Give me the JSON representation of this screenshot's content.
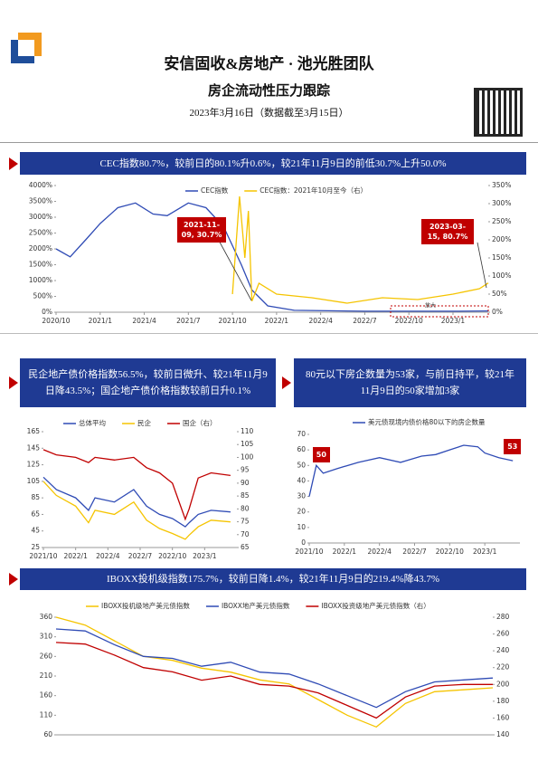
{
  "header": {
    "title": "安信固收&房地产 · 池光胜团队",
    "subtitle": "房企流动性压力跟踪",
    "date": "2023年3月16日（数据截至3月15日）"
  },
  "banners": [
    "CEC指数80.7%，较前日的80.1%升0.6%，较21年11月9日的前低30.7%上升50.0%",
    "民企地产债价格指数56.5%，较前日微升、较21年11月9日降43.5%；国企地产债价格指数较前日升0.1%",
    "80元以下房企数量为53家，与前日持平，较21年11月9日的50家增加3家",
    "IBOXX投机级指数175.7%，较前日降1.4%，较21年11月9日的219.4%降43.7%"
  ],
  "chart_data": [
    {
      "type": "line",
      "xlim": [
        2020.75,
        2023.2
      ],
      "xticks": [
        {
          "value": 2020.75,
          "label": "2020/10"
        },
        {
          "value": 2021.0,
          "label": "2021/1"
        },
        {
          "value": 2021.25,
          "label": "2021/4"
        },
        {
          "value": 2021.5,
          "label": "2021/7"
        },
        {
          "value": 2021.75,
          "label": "2021/10"
        },
        {
          "value": 2022.0,
          "label": "2022/1"
        },
        {
          "value": 2022.25,
          "label": "2022/4"
        },
        {
          "value": 2022.5,
          "label": "2022/7"
        },
        {
          "value": 2022.75,
          "label": "2022/10"
        },
        {
          "value": 2023.0,
          "label": "2023/1"
        }
      ],
      "ylim": [
        0,
        4000
      ],
      "yticks": [
        {
          "value": 0,
          "label": "0%"
        },
        {
          "value": 500,
          "label": "500%"
        },
        {
          "value": 1000,
          "label": "1000%"
        },
        {
          "value": 1500,
          "label": "1500%"
        },
        {
          "value": 2000,
          "label": "2000%"
        },
        {
          "value": 2500,
          "label": "2500%"
        },
        {
          "value": 3000,
          "label": "3000%"
        },
        {
          "value": 3500,
          "label": "3500%"
        },
        {
          "value": 4000,
          "label": "4000%"
        }
      ],
      "y2lim": [
        0,
        350
      ],
      "y2ticks": [
        {
          "value": 0,
          "label": "0%"
        },
        {
          "value": 50,
          "label": "50%"
        },
        {
          "value": 100,
          "label": "100%"
        },
        {
          "value": 150,
          "label": "150%"
        },
        {
          "value": 200,
          "label": "200%"
        },
        {
          "value": 250,
          "label": "250%"
        },
        {
          "value": 300,
          "label": "300%"
        },
        {
          "value": 350,
          "label": "350%"
        }
      ],
      "series": [
        {
          "name": "CEC指数",
          "color": "#2f4bb5",
          "x": [
            2020.75,
            2020.83,
            2020.92,
            2021.0,
            2021.1,
            2021.2,
            2021.3,
            2021.38,
            2021.5,
            2021.6,
            2021.7,
            2021.8,
            2021.86,
            2021.95,
            2022.1,
            2022.5,
            2023.0,
            2023.2
          ],
          "values": [
            2000,
            1750,
            2300,
            2800,
            3300,
            3450,
            3100,
            3050,
            3450,
            3300,
            2700,
            1500,
            700,
            200,
            60,
            30,
            30,
            40
          ]
        },
        {
          "name": "CEC指数：2021年10月至今（右）",
          "color": "#f5c400",
          "axis": "y2",
          "x": [
            2021.75,
            2021.79,
            2021.82,
            2021.84,
            2021.86,
            2021.9,
            2022.0,
            2022.2,
            2022.4,
            2022.6,
            2022.8,
            2023.0,
            2023.15,
            2023.2
          ],
          "values": [
            50,
            320,
            150,
            280,
            30.7,
            80,
            50,
            40,
            25,
            40,
            35,
            50,
            65,
            80.7
          ]
        }
      ],
      "annotations": [
        "2021-11-09, 30.7%",
        "2023-03-15, 80.7%",
        "放大"
      ]
    },
    {
      "type": "line",
      "xlim": [
        2021.75,
        2023.25
      ],
      "xticks": [
        {
          "value": 2021.75,
          "label": "2021/10"
        },
        {
          "value": 2022.0,
          "label": "2022/1"
        },
        {
          "value": 2022.25,
          "label": "2022/4"
        },
        {
          "value": 2022.5,
          "label": "2022/7"
        },
        {
          "value": 2022.75,
          "label": "2022/10"
        },
        {
          "value": 2023.0,
          "label": "2023/1"
        }
      ],
      "ylim": [
        25,
        165
      ],
      "yticks": [
        25,
        45,
        65,
        85,
        105,
        125,
        145,
        165
      ],
      "y2lim": [
        65,
        110
      ],
      "y2ticks": [
        65,
        70,
        75,
        80,
        85,
        90,
        95,
        100,
        105,
        110
      ],
      "series": [
        {
          "name": "总体平均",
          "color": "#2f4bb5",
          "x": [
            2021.75,
            2021.85,
            2022.0,
            2022.1,
            2022.15,
            2022.3,
            2022.45,
            2022.55,
            2022.65,
            2022.75,
            2022.85,
            2022.88,
            2022.95,
            2023.05,
            2023.2
          ],
          "values": [
            110,
            95,
            85,
            70,
            85,
            80,
            95,
            75,
            65,
            60,
            50,
            55,
            65,
            70,
            68
          ]
        },
        {
          "name": "民企",
          "color": "#f5c400",
          "x": [
            2021.75,
            2021.85,
            2022.0,
            2022.1,
            2022.15,
            2022.3,
            2022.45,
            2022.55,
            2022.65,
            2022.75,
            2022.85,
            2022.88,
            2022.95,
            2023.05,
            2023.2
          ],
          "values": [
            105,
            88,
            75,
            55,
            70,
            65,
            80,
            58,
            48,
            42,
            35,
            40,
            50,
            58,
            56
          ]
        },
        {
          "name": "国企（右）",
          "color": "#c00000",
          "axis": "y2",
          "x": [
            2021.75,
            2021.85,
            2022.0,
            2022.1,
            2022.15,
            2022.3,
            2022.45,
            2022.55,
            2022.65,
            2022.75,
            2022.85,
            2022.88,
            2022.95,
            2023.05,
            2023.2
          ],
          "values": [
            103,
            101,
            100,
            98,
            100,
            99,
            100,
            96,
            94,
            90,
            76,
            80,
            92,
            94,
            93
          ]
        }
      ]
    },
    {
      "type": "line",
      "xlim": [
        2021.75,
        2023.25
      ],
      "xticks": [
        {
          "value": 2021.75,
          "label": "2021/10"
        },
        {
          "value": 2022.0,
          "label": "2022/1"
        },
        {
          "value": 2022.25,
          "label": "2022/4"
        },
        {
          "value": 2022.5,
          "label": "2022/7"
        },
        {
          "value": 2022.75,
          "label": "2022/10"
        },
        {
          "value": 2023.0,
          "label": "2023/1"
        }
      ],
      "ylim": [
        0,
        70
      ],
      "yticks": [
        0,
        10,
        20,
        30,
        40,
        50,
        60,
        70
      ],
      "series": [
        {
          "name": "美元债现境内债价格80以下的房企数量",
          "color": "#2f4bb5",
          "x": [
            2021.75,
            2021.8,
            2021.85,
            2021.95,
            2022.1,
            2022.25,
            2022.4,
            2022.55,
            2022.65,
            2022.75,
            2022.85,
            2022.95,
            2023.0,
            2023.1,
            2023.2
          ],
          "values": [
            30,
            50,
            45,
            48,
            52,
            55,
            52,
            56,
            57,
            60,
            63,
            62,
            58,
            55,
            53
          ]
        }
      ],
      "annotations": [
        "50",
        "53"
      ]
    },
    {
      "type": "line",
      "xlim": [
        0,
        15
      ],
      "ylim": [
        60,
        360
      ],
      "yticks": [
        60,
        110,
        160,
        210,
        260,
        310,
        360
      ],
      "y2lim": [
        140,
        280
      ],
      "y2ticks": [
        140,
        160,
        180,
        200,
        220,
        240,
        260,
        280
      ],
      "series": [
        {
          "name": "IBOXX投机级地产美元债指数",
          "color": "#f5c400",
          "x": [
            0,
            1,
            2,
            3,
            4,
            5,
            6,
            7,
            8,
            9,
            10,
            11,
            12,
            13,
            14,
            15
          ],
          "values": [
            360,
            340,
            300,
            260,
            250,
            230,
            220,
            200,
            190,
            150,
            110,
            80,
            140,
            170,
            175,
            180
          ]
        },
        {
          "name": "IBOXX地产美元债指数",
          "color": "#2f4bb5",
          "x": [
            0,
            1,
            2,
            3,
            4,
            5,
            6,
            7,
            8,
            9,
            10,
            11,
            12,
            13,
            14,
            15
          ],
          "values": [
            330,
            325,
            290,
            260,
            255,
            235,
            245,
            220,
            215,
            190,
            160,
            130,
            170,
            195,
            200,
            205
          ]
        },
        {
          "name": "IBOXX投资级地产美元债指数（右）",
          "color": "#c00000",
          "axis": "y2",
          "x": [
            0,
            1,
            2,
            3,
            4,
            5,
            6,
            7,
            8,
            9,
            10,
            11,
            12,
            13,
            14,
            15
          ],
          "values": [
            250,
            248,
            235,
            220,
            215,
            205,
            210,
            200,
            198,
            190,
            175,
            160,
            185,
            198,
            200,
            200
          ]
        }
      ]
    }
  ]
}
